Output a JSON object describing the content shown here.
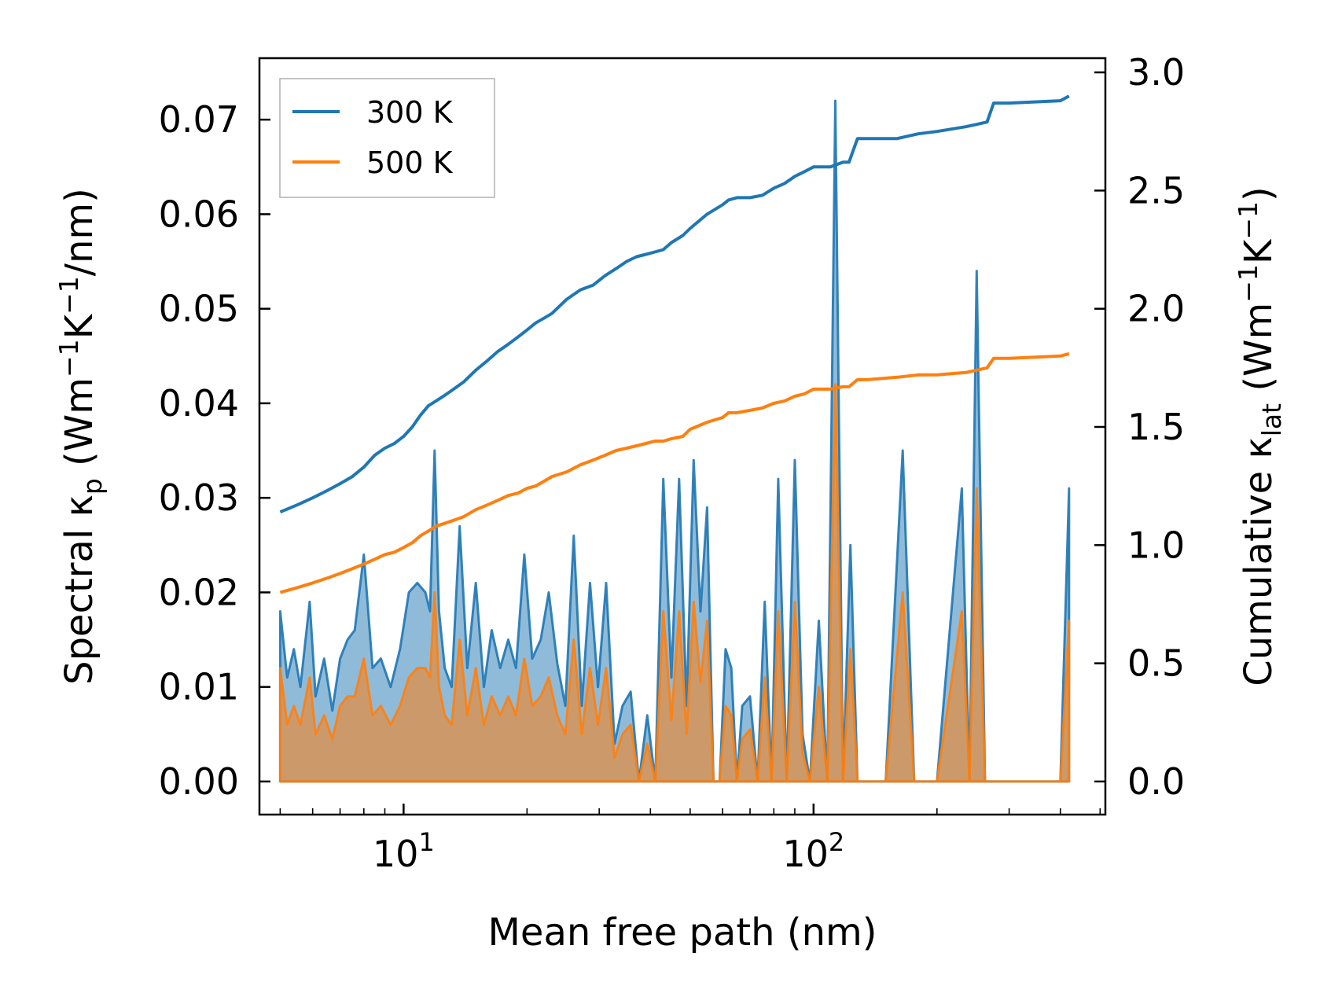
{
  "chart_data": {
    "type": "line",
    "xlabel": "Mean free path (nm)",
    "ylabel_left": {
      "main": "Spectral κ",
      "sub": "p",
      "units_pre": " (Wm",
      "sup1": "−1",
      "mid": "K",
      "sup2": "−1",
      "post": "/nm)"
    },
    "ylabel_right": {
      "main": "Cumulative κ",
      "sub": "lat",
      "units_pre": " (Wm",
      "sup1": "−1",
      "mid": "K",
      "sup2": "−1",
      "post": ")"
    },
    "xscale": "log",
    "xlim": [
      4.45,
      515
    ],
    "ylim_left": [
      -0.0035,
      0.0765
    ],
    "ylim_right": [
      -0.14,
      3.06
    ],
    "x_ticks": [
      {
        "value": 10,
        "base": "10",
        "exp": "1"
      },
      {
        "value": 100,
        "base": "10",
        "exp": "2"
      }
    ],
    "y_left_ticks": [
      {
        "value": 0.0,
        "label": "0.00"
      },
      {
        "value": 0.01,
        "label": "0.01"
      },
      {
        "value": 0.02,
        "label": "0.02"
      },
      {
        "value": 0.03,
        "label": "0.03"
      },
      {
        "value": 0.04,
        "label": "0.04"
      },
      {
        "value": 0.05,
        "label": "0.05"
      },
      {
        "value": 0.06,
        "label": "0.06"
      },
      {
        "value": 0.07,
        "label": "0.07"
      }
    ],
    "y_right_ticks": [
      {
        "value": 0.0,
        "label": "0.0"
      },
      {
        "value": 0.5,
        "label": "0.5"
      },
      {
        "value": 1.0,
        "label": "1.0"
      },
      {
        "value": 1.5,
        "label": "1.5"
      },
      {
        "value": 2.0,
        "label": "2.0"
      },
      {
        "value": 2.5,
        "label": "2.5"
      },
      {
        "value": 3.0,
        "label": "3.0"
      }
    ],
    "legend": {
      "position": "top-left",
      "entries": [
        {
          "label": "300 K",
          "color": "#1f77b4"
        },
        {
          "label": "500 K",
          "color": "#ff7f0e"
        }
      ]
    },
    "series": [
      {
        "name": "300 K",
        "color": "#1f77b4",
        "spectral": {
          "x": [
            5.0,
            5.2,
            5.4,
            5.6,
            5.9,
            6.1,
            6.4,
            6.7,
            7.0,
            7.3,
            7.6,
            8.0,
            8.4,
            8.8,
            9.3,
            9.8,
            10.3,
            10.8,
            11.3,
            11.6,
            11.9,
            12.2,
            12.6,
            13.1,
            13.7,
            14.3,
            15.0,
            15.7,
            16.4,
            17.2,
            18.0,
            18.8,
            19.7,
            20.6,
            21.6,
            22.6,
            23.7,
            24.8,
            26.0,
            27.2,
            28.5,
            29.8,
            31.2,
            32.7,
            34.2,
            35.8,
            37.5,
            39.3,
            41.1,
            43.0,
            45.0,
            47.0,
            49.0,
            51.0,
            53.0,
            55.0,
            57.0,
            59.0,
            61.0,
            63.0,
            65.0,
            67.0,
            70.0,
            73.0,
            76.0,
            79.0,
            82.0,
            86.0,
            90.0,
            94.0,
            98.0,
            103.0,
            108.0,
            113.0,
            118.0,
            123.0,
            128.0,
            134.0,
            140.0,
            150.0,
            165.0,
            176.0,
            185.0,
            200.0,
            230.0,
            240.0,
            250.0,
            262.0,
            275.0,
            285.0,
            300.0,
            350.0,
            400.0,
            420.0
          ],
          "y": [
            0.018,
            0.011,
            0.014,
            0.01,
            0.019,
            0.009,
            0.013,
            0.0075,
            0.013,
            0.015,
            0.016,
            0.024,
            0.012,
            0.013,
            0.01,
            0.014,
            0.02,
            0.021,
            0.02,
            0.018,
            0.035,
            0.018,
            0.012,
            0.01,
            0.027,
            0.012,
            0.021,
            0.01,
            0.016,
            0.012,
            0.015,
            0.012,
            0.024,
            0.013,
            0.015,
            0.02,
            0.0125,
            0.008,
            0.026,
            0.008,
            0.021,
            0.01,
            0.021,
            0.004,
            0.008,
            0.0095,
            0.0,
            0.007,
            0.0,
            0.032,
            0.011,
            0.032,
            0.008,
            0.034,
            0.018,
            0.029,
            0.0,
            0.0,
            0.014,
            0.012,
            0.0,
            0.008,
            0.009,
            0.0,
            0.019,
            0.0,
            0.032,
            0.0,
            0.034,
            0.005,
            0.0,
            0.017,
            0.0,
            0.072,
            0.0,
            0.025,
            0.0,
            0.0,
            0.0,
            0.0,
            0.035,
            0.0,
            0.0,
            0.0,
            0.031,
            0.0,
            0.054,
            0.0,
            0.0,
            0.0,
            0.0,
            0.0,
            0.0,
            0.031
          ]
        },
        "cumulative": {
          "x": [
            5.0,
            5.5,
            6.0,
            6.5,
            7.0,
            7.5,
            8.0,
            8.5,
            9.0,
            9.5,
            10.0,
            10.5,
            11.0,
            11.5,
            12.0,
            12.5,
            13.0,
            14.0,
            15.0,
            16.0,
            17.0,
            18.0,
            19.0,
            20.0,
            21.0,
            22.0,
            23.0,
            25.0,
            27.0,
            29.0,
            31.0,
            33.0,
            35.0,
            37.0,
            39.0,
            41.0,
            43.0,
            45.0,
            48.0,
            50.0,
            55.0,
            60.0,
            62.0,
            65.0,
            70.0,
            75.0,
            80.0,
            85.0,
            90.0,
            95.0,
            100.0,
            110.0,
            118.0,
            122.0,
            128.0,
            135.0,
            160.0,
            180.0,
            200.0,
            235.0,
            250.0,
            265.0,
            275.0,
            300.0,
            400.0,
            420.0
          ],
          "y": [
            1.14,
            1.17,
            1.2,
            1.23,
            1.26,
            1.29,
            1.33,
            1.38,
            1.41,
            1.43,
            1.46,
            1.5,
            1.55,
            1.59,
            1.61,
            1.63,
            1.65,
            1.69,
            1.74,
            1.78,
            1.82,
            1.85,
            1.88,
            1.91,
            1.94,
            1.96,
            1.98,
            2.04,
            2.08,
            2.1,
            2.14,
            2.17,
            2.2,
            2.22,
            2.23,
            2.24,
            2.25,
            2.28,
            2.31,
            2.34,
            2.4,
            2.44,
            2.46,
            2.47,
            2.47,
            2.48,
            2.51,
            2.53,
            2.56,
            2.58,
            2.6,
            2.6,
            2.62,
            2.62,
            2.72,
            2.72,
            2.72,
            2.74,
            2.75,
            2.77,
            2.78,
            2.79,
            2.87,
            2.87,
            2.88,
            2.9
          ]
        }
      },
      {
        "name": "500 K",
        "color": "#ff7f0e",
        "spectral": {
          "x": [
            5.0,
            5.2,
            5.4,
            5.6,
            5.9,
            6.1,
            6.4,
            6.7,
            7.0,
            7.3,
            7.6,
            8.0,
            8.4,
            8.8,
            9.3,
            9.8,
            10.3,
            10.8,
            11.3,
            11.6,
            11.9,
            12.2,
            12.6,
            13.1,
            13.7,
            14.3,
            15.0,
            15.7,
            16.4,
            17.2,
            18.0,
            18.8,
            19.7,
            20.6,
            21.6,
            22.6,
            23.7,
            24.8,
            26.0,
            27.2,
            28.5,
            29.8,
            31.2,
            32.7,
            34.2,
            35.8,
            37.5,
            39.3,
            41.1,
            43.0,
            45.0,
            47.0,
            49.0,
            51.0,
            53.0,
            55.0,
            57.0,
            59.0,
            61.0,
            63.0,
            65.0,
            67.0,
            70.0,
            73.0,
            76.0,
            79.0,
            82.0,
            86.0,
            90.0,
            94.0,
            98.0,
            103.0,
            108.0,
            113.0,
            118.0,
            123.0,
            128.0,
            134.0,
            140.0,
            150.0,
            165.0,
            176.0,
            185.0,
            200.0,
            230.0,
            240.0,
            250.0,
            262.0,
            275.0,
            285.0,
            300.0,
            350.0,
            400.0,
            420.0
          ],
          "y": [
            0.012,
            0.006,
            0.008,
            0.006,
            0.011,
            0.005,
            0.007,
            0.0045,
            0.008,
            0.009,
            0.009,
            0.013,
            0.007,
            0.008,
            0.006,
            0.008,
            0.011,
            0.012,
            0.012,
            0.011,
            0.02,
            0.01,
            0.007,
            0.006,
            0.015,
            0.007,
            0.012,
            0.006,
            0.009,
            0.007,
            0.009,
            0.007,
            0.013,
            0.008,
            0.009,
            0.011,
            0.007,
            0.005,
            0.015,
            0.005,
            0.012,
            0.006,
            0.012,
            0.0025,
            0.005,
            0.006,
            0.0,
            0.004,
            0.0,
            0.018,
            0.0065,
            0.018,
            0.005,
            0.019,
            0.0105,
            0.017,
            0.0,
            0.0,
            0.008,
            0.007,
            0.0,
            0.0045,
            0.0055,
            0.0,
            0.011,
            0.0,
            0.018,
            0.0,
            0.019,
            0.003,
            0.0,
            0.01,
            0.0,
            0.042,
            0.0,
            0.014,
            0.0,
            0.0,
            0.0,
            0.0,
            0.02,
            0.0,
            0.0,
            0.0,
            0.018,
            0.0,
            0.031,
            0.0,
            0.0,
            0.0,
            0.0,
            0.0,
            0.0,
            0.017
          ]
        },
        "cumulative": {
          "x": [
            5.0,
            5.5,
            6.0,
            6.5,
            7.0,
            7.5,
            8.0,
            8.5,
            9.0,
            9.5,
            10.0,
            10.5,
            11.0,
            11.5,
            12.0,
            12.5,
            13.0,
            14.0,
            15.0,
            16.0,
            17.0,
            18.0,
            19.0,
            20.0,
            21.0,
            22.0,
            23.0,
            25.0,
            27.0,
            29.0,
            31.0,
            33.0,
            35.0,
            37.0,
            39.0,
            41.0,
            43.0,
            45.0,
            48.0,
            50.0,
            55.0,
            60.0,
            62.0,
            65.0,
            70.0,
            75.0,
            80.0,
            85.0,
            90.0,
            95.0,
            100.0,
            110.0,
            118.0,
            122.0,
            128.0,
            135.0,
            160.0,
            180.0,
            200.0,
            235.0,
            250.0,
            265.0,
            275.0,
            300.0,
            400.0,
            420.0
          ],
          "y": [
            0.8,
            0.82,
            0.84,
            0.86,
            0.88,
            0.9,
            0.92,
            0.94,
            0.96,
            0.97,
            0.99,
            1.01,
            1.04,
            1.06,
            1.08,
            1.09,
            1.1,
            1.12,
            1.15,
            1.17,
            1.19,
            1.21,
            1.22,
            1.24,
            1.25,
            1.27,
            1.29,
            1.31,
            1.34,
            1.36,
            1.38,
            1.4,
            1.41,
            1.42,
            1.43,
            1.44,
            1.44,
            1.45,
            1.46,
            1.49,
            1.52,
            1.54,
            1.56,
            1.56,
            1.57,
            1.58,
            1.6,
            1.61,
            1.63,
            1.64,
            1.66,
            1.66,
            1.67,
            1.67,
            1.7,
            1.7,
            1.71,
            1.72,
            1.72,
            1.73,
            1.74,
            1.75,
            1.79,
            1.79,
            1.8,
            1.81
          ]
        }
      }
    ]
  }
}
